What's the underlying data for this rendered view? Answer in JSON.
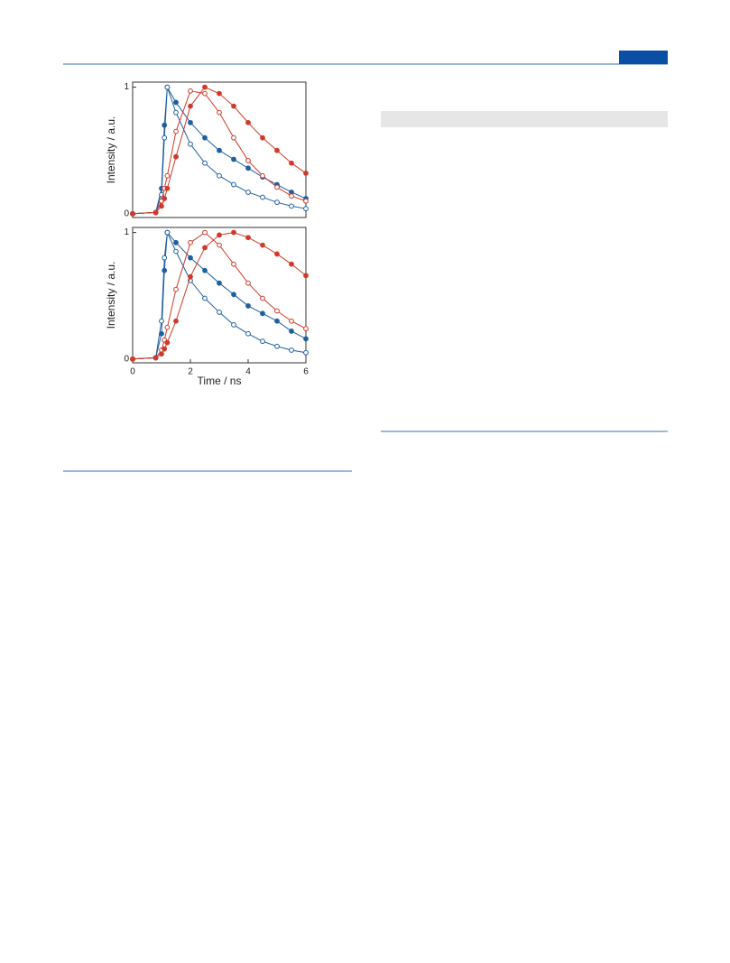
{
  "chart_data": [
    {
      "type": "line",
      "ylabel": "Intensity / a.u.",
      "xlim": [
        0,
        6
      ],
      "ylim": [
        -0.03,
        1.04
      ],
      "yticks": [
        0,
        1
      ],
      "x": [
        0,
        0.8,
        1.0,
        1.1,
        1.2,
        1.5,
        2,
        2.5,
        3,
        3.5,
        4,
        4.5,
        5,
        5.5,
        6
      ],
      "series": [
        {
          "color": "#1f5fa0",
          "marker": "filled",
          "values": [
            0,
            0.01,
            0.2,
            0.7,
            1.0,
            0.88,
            0.72,
            0.6,
            0.5,
            0.43,
            0.36,
            0.29,
            0.23,
            0.17,
            0.12
          ]
        },
        {
          "color": "#1f5fa0",
          "marker": "open",
          "values": [
            0,
            0.01,
            0.15,
            0.6,
            1.0,
            0.8,
            0.55,
            0.4,
            0.3,
            0.23,
            0.17,
            0.13,
            0.09,
            0.06,
            0.04
          ]
        },
        {
          "color": "#d03a2a",
          "marker": "open",
          "values": [
            0,
            0.01,
            0.1,
            0.2,
            0.3,
            0.65,
            0.97,
            0.95,
            0.8,
            0.6,
            0.42,
            0.3,
            0.21,
            0.14,
            0.1
          ]
        },
        {
          "color": "#d03a2a",
          "marker": "filled",
          "values": [
            0,
            0.01,
            0.06,
            0.12,
            0.2,
            0.45,
            0.85,
            1.0,
            0.95,
            0.85,
            0.72,
            0.6,
            0.5,
            0.4,
            0.32
          ]
        }
      ]
    },
    {
      "type": "line",
      "ylabel": "Intensity / a.u.",
      "xlabel": "Time / ns",
      "xlim": [
        0,
        6
      ],
      "xticks": [
        0,
        2,
        4,
        6
      ],
      "ylim": [
        -0.03,
        1.04
      ],
      "yticks": [
        0,
        1
      ],
      "x": [
        0,
        0.8,
        1.0,
        1.1,
        1.2,
        1.5,
        2,
        2.5,
        3,
        3.5,
        4,
        4.5,
        5,
        5.5,
        6
      ],
      "series": [
        {
          "color": "#1f5fa0",
          "marker": "filled",
          "values": [
            0,
            0.01,
            0.2,
            0.7,
            1.0,
            0.92,
            0.8,
            0.7,
            0.6,
            0.51,
            0.42,
            0.36,
            0.3,
            0.22,
            0.16
          ]
        },
        {
          "color": "#1f5fa0",
          "marker": "open",
          "values": [
            0,
            0.01,
            0.3,
            0.8,
            1.0,
            0.85,
            0.62,
            0.48,
            0.37,
            0.27,
            0.2,
            0.14,
            0.1,
            0.07,
            0.05
          ]
        },
        {
          "color": "#d03a2a",
          "marker": "open",
          "values": [
            0,
            0.01,
            0.07,
            0.15,
            0.25,
            0.55,
            0.92,
            1.0,
            0.9,
            0.75,
            0.6,
            0.48,
            0.38,
            0.3,
            0.24
          ]
        },
        {
          "color": "#d03a2a",
          "marker": "filled",
          "values": [
            0,
            0.01,
            0.04,
            0.08,
            0.13,
            0.3,
            0.65,
            0.88,
            0.98,
            1.0,
            0.96,
            0.9,
            0.83,
            0.75,
            0.66
          ]
        }
      ]
    }
  ]
}
